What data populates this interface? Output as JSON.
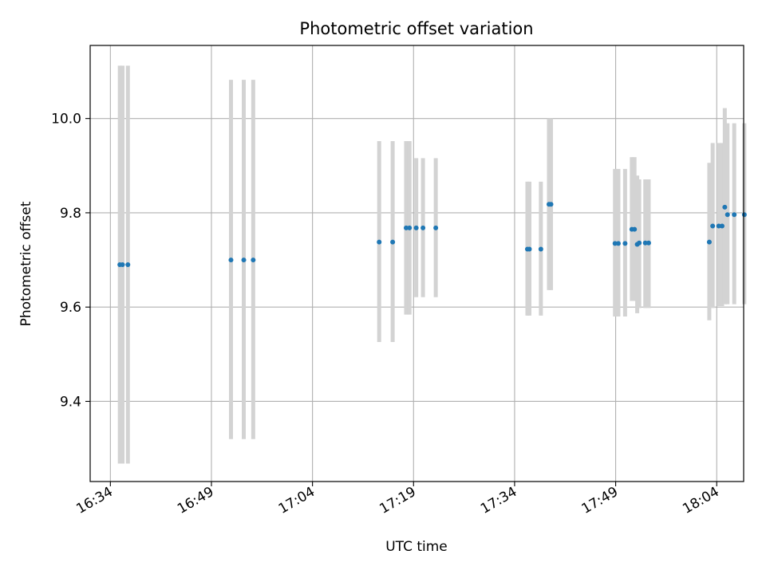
{
  "chart_data": {
    "type": "scatter",
    "title": "Photometric offset variation",
    "xlabel": "UTC time",
    "ylabel": "Photometric offset",
    "x_tick_labels": [
      "16:34",
      "16:49",
      "17:04",
      "17:19",
      "17:34",
      "17:49",
      "18:04"
    ],
    "y_tick_labels": [
      "9.4",
      "9.6",
      "9.8",
      "10.0"
    ],
    "y_ticks": [
      9.4,
      9.6,
      9.8,
      10.0
    ],
    "xlim": [
      "16:31",
      "18:08"
    ],
    "ylim": [
      9.23,
      10.155
    ],
    "grid": true,
    "colors": {
      "points": "#1f77b4",
      "error_bars": "#d3d3d3",
      "grid": "#b0b0b0"
    },
    "series": [
      {
        "x": [
          "16:35:24",
          "16:35:48",
          "16:36:36",
          "16:51:54",
          "16:53:48",
          "16:55:12",
          "17:13:54",
          "17:15:54",
          "17:17:54",
          "17:18:24",
          "17:19:24",
          "17:20:24",
          "17:22:18",
          "17:35:54",
          "17:36:12",
          "17:37:54",
          "17:39:06",
          "17:39:24",
          "17:48:54",
          "17:49:24",
          "17:50:24",
          "17:51:24",
          "17:51:48",
          "17:52:12",
          "17:52:30",
          "17:53:24",
          "17:53:54",
          "18:02:54",
          "18:03:24",
          "18:04:18",
          "18:04:48",
          "18:05:12",
          "18:05:36",
          "18:06:36",
          "18:08:06"
        ],
        "y": [
          9.69,
          9.69,
          9.69,
          9.7,
          9.7,
          9.7,
          9.738,
          9.738,
          9.768,
          9.768,
          9.768,
          9.768,
          9.768,
          9.723,
          9.723,
          9.723,
          9.818,
          9.818,
          9.735,
          9.735,
          9.735,
          9.765,
          9.765,
          9.733,
          9.736,
          9.736,
          9.736,
          9.738,
          9.772,
          9.772,
          9.772,
          9.812,
          9.796,
          9.796,
          9.796
        ],
        "y_lower": [
          9.268,
          9.268,
          9.268,
          9.32,
          9.32,
          9.32,
          9.526,
          9.526,
          9.584,
          9.584,
          9.621,
          9.621,
          9.621,
          9.582,
          9.582,
          9.582,
          9.636,
          9.636,
          9.58,
          9.58,
          9.58,
          9.613,
          9.613,
          9.587,
          9.598,
          9.598,
          9.598,
          9.572,
          9.598,
          9.602,
          9.602,
          9.606,
          9.606,
          9.606,
          9.606
        ],
        "y_upper": [
          10.112,
          10.112,
          10.112,
          10.082,
          10.082,
          10.082,
          9.952,
          9.952,
          9.952,
          9.952,
          9.916,
          9.916,
          9.916,
          9.866,
          9.866,
          9.866,
          10.0,
          10.0,
          9.893,
          9.893,
          9.893,
          9.918,
          9.918,
          9.879,
          9.871,
          9.871,
          9.871,
          9.906,
          9.948,
          9.948,
          9.948,
          10.022,
          9.99,
          9.99,
          9.99
        ]
      }
    ]
  }
}
